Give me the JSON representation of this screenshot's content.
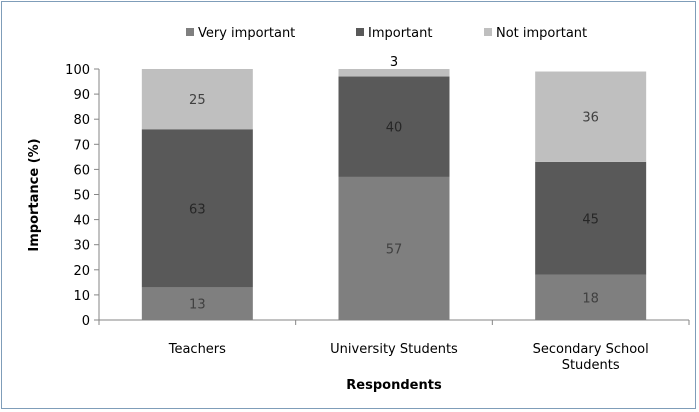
{
  "chart_data": {
    "type": "bar",
    "stacked": true,
    "title": "",
    "xlabel": "Respondents",
    "ylabel": "Importance (%)",
    "ylim": [
      0,
      100
    ],
    "ytick_step": 10,
    "grid": false,
    "legend_position": "top",
    "categories": [
      "Teachers",
      "University Students",
      "Secondary School Students"
    ],
    "category_lines": [
      [
        "Teachers"
      ],
      [
        "University Students"
      ],
      [
        "Secondary School",
        "Students"
      ]
    ],
    "series": [
      {
        "name": "Very important",
        "color": "#7f7f7f",
        "label_color": "#404040",
        "values": [
          13,
          57,
          18
        ]
      },
      {
        "name": "Important",
        "color": "#595959",
        "label_color": "#262626",
        "values": [
          63,
          40,
          45
        ]
      },
      {
        "name": "Not important",
        "color": "#bfbfbf",
        "label_color": "#404040",
        "values": [
          25,
          3,
          36
        ]
      }
    ]
  }
}
